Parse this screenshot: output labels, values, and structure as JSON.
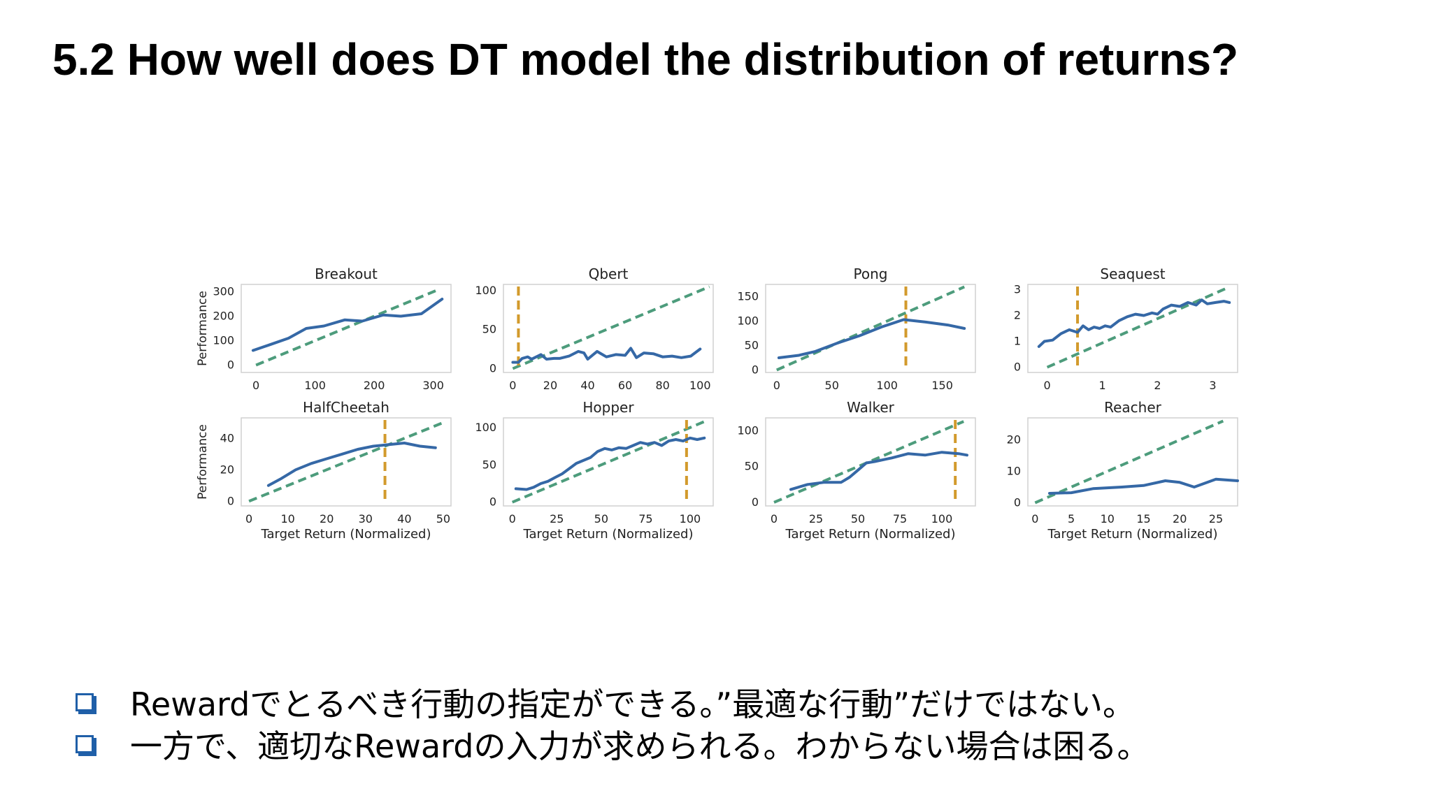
{
  "title": "5.2 How well does DT model the distribution of returns?",
  "bullets": [
    {
      "text": "Rewardでとるべき行動の指定ができる。”最適な行動”だけではない。"
    },
    {
      "text": "一方で、適切なRewardの入力が求められる。わからない場合は困る。"
    }
  ],
  "colors": {
    "performance": "#3568a6",
    "oracle": "#4d9c7c",
    "best": "#d29a2c",
    "spine": "#d0d0d0",
    "text": "#222222"
  },
  "chart_data": [
    {
      "type": "line",
      "title": "Breakout",
      "ylabel": "Performance",
      "xlabel": "",
      "xticks": [
        0,
        100,
        200,
        300
      ],
      "yticks": [
        0,
        100,
        200,
        300
      ],
      "xlim": [
        -25,
        330
      ],
      "ylim": [
        -30,
        330
      ],
      "series": [
        {
          "values": [
            [
              -5,
              60
            ],
            [
              25,
              85
            ],
            [
              55,
              110
            ],
            [
              85,
              150
            ],
            [
              115,
              160
            ],
            [
              150,
              185
            ],
            [
              180,
              180
            ],
            [
              215,
              205
            ],
            [
              245,
              200
            ],
            [
              280,
              210
            ],
            [
              315,
              270
            ]
          ]
        }
      ],
      "oracle": [
        [
          0,
          0
        ],
        [
          310,
          310
        ]
      ],
      "best_x": null
    },
    {
      "type": "line",
      "title": "Qbert",
      "ylabel": "",
      "xlabel": "",
      "xticks": [
        0,
        20,
        40,
        60,
        80,
        100
      ],
      "yticks": [
        0,
        50,
        100
      ],
      "xlim": [
        -5,
        107
      ],
      "ylim": [
        -5,
        108
      ],
      "series": [
        {
          "values": [
            [
              0,
              8
            ],
            [
              3,
              8
            ],
            [
              5,
              13
            ],
            [
              8,
              15
            ],
            [
              10,
              12
            ],
            [
              15,
              18
            ],
            [
              18,
              12
            ],
            [
              22,
              13
            ],
            [
              25,
              13
            ],
            [
              30,
              16
            ],
            [
              35,
              22
            ],
            [
              38,
              20
            ],
            [
              40,
              12
            ],
            [
              45,
              22
            ],
            [
              50,
              15
            ],
            [
              55,
              18
            ],
            [
              60,
              17
            ],
            [
              63,
              26
            ],
            [
              66,
              14
            ],
            [
              70,
              20
            ],
            [
              75,
              19
            ],
            [
              80,
              15
            ],
            [
              85,
              16
            ],
            [
              90,
              14
            ],
            [
              95,
              16
            ],
            [
              100,
              25
            ]
          ]
        }
      ],
      "oracle": [
        [
          0,
          0
        ],
        [
          105,
          105
        ]
      ],
      "best_x": 3
    },
    {
      "type": "line",
      "title": "Pong",
      "ylabel": "",
      "xlabel": "",
      "xticks": [
        0,
        50,
        100,
        150
      ],
      "yticks": [
        0,
        50,
        100,
        150
      ],
      "xlim": [
        -10,
        180
      ],
      "ylim": [
        -5,
        175
      ],
      "series": [
        {
          "values": [
            [
              2,
              25
            ],
            [
              20,
              30
            ],
            [
              35,
              38
            ],
            [
              55,
              55
            ],
            [
              75,
              70
            ],
            [
              95,
              88
            ],
            [
              115,
              103
            ],
            [
              135,
              98
            ],
            [
              155,
              92
            ],
            [
              170,
              85
            ]
          ]
        }
      ],
      "oracle": [
        [
          0,
          0
        ],
        [
          170,
          170
        ]
      ],
      "best_x": 117
    },
    {
      "type": "line",
      "title": "Seaquest",
      "ylabel": "",
      "xlabel": "",
      "xticks": [
        0,
        1,
        2,
        3
      ],
      "yticks": [
        0,
        1,
        2,
        3
      ],
      "xlim": [
        -0.35,
        3.45
      ],
      "ylim": [
        -0.2,
        3.2
      ],
      "series": [
        {
          "values": [
            [
              -0.15,
              0.8
            ],
            [
              -0.05,
              1.0
            ],
            [
              0.1,
              1.05
            ],
            [
              0.25,
              1.3
            ],
            [
              0.4,
              1.45
            ],
            [
              0.55,
              1.35
            ],
            [
              0.65,
              1.6
            ],
            [
              0.75,
              1.45
            ],
            [
              0.85,
              1.55
            ],
            [
              0.95,
              1.5
            ],
            [
              1.05,
              1.6
            ],
            [
              1.15,
              1.55
            ],
            [
              1.3,
              1.8
            ],
            [
              1.45,
              1.95
            ],
            [
              1.6,
              2.05
            ],
            [
              1.75,
              2.0
            ],
            [
              1.9,
              2.1
            ],
            [
              2.0,
              2.05
            ],
            [
              2.1,
              2.25
            ],
            [
              2.25,
              2.4
            ],
            [
              2.4,
              2.35
            ],
            [
              2.55,
              2.5
            ],
            [
              2.7,
              2.4
            ],
            [
              2.8,
              2.6
            ],
            [
              2.9,
              2.45
            ],
            [
              3.05,
              2.5
            ],
            [
              3.2,
              2.55
            ],
            [
              3.3,
              2.5
            ]
          ]
        }
      ],
      "oracle": [
        [
          0,
          0
        ],
        [
          3.3,
          3.1
        ]
      ],
      "best_x": 0.55
    },
    {
      "type": "line",
      "title": "HalfCheetah",
      "ylabel": "Performance",
      "xlabel": "Target Return (Normalized)",
      "xticks": [
        0,
        10,
        20,
        30,
        40,
        50
      ],
      "yticks": [
        0,
        20,
        40
      ],
      "xlim": [
        -2,
        52
      ],
      "ylim": [
        -3,
        53
      ],
      "series": [
        {
          "values": [
            [
              5,
              10
            ],
            [
              8,
              14
            ],
            [
              12,
              20
            ],
            [
              16,
              24
            ],
            [
              20,
              27
            ],
            [
              24,
              30
            ],
            [
              28,
              33
            ],
            [
              32,
              35
            ],
            [
              36,
              36
            ],
            [
              40,
              37
            ],
            [
              44,
              35
            ],
            [
              48,
              34
            ]
          ]
        }
      ],
      "oracle": [
        [
          0,
          0
        ],
        [
          50,
          50
        ]
      ],
      "best_x": 35
    },
    {
      "type": "line",
      "title": "Hopper",
      "ylabel": "",
      "xlabel": "Target Return (Normalized)",
      "xticks": [
        0,
        25,
        50,
        75,
        100
      ],
      "yticks": [
        0,
        50,
        100
      ],
      "xlim": [
        -5,
        113
      ],
      "ylim": [
        -5,
        113
      ],
      "series": [
        {
          "values": [
            [
              2,
              18
            ],
            [
              8,
              17
            ],
            [
              12,
              20
            ],
            [
              16,
              25
            ],
            [
              20,
              28
            ],
            [
              24,
              33
            ],
            [
              28,
              38
            ],
            [
              32,
              45
            ],
            [
              36,
              52
            ],
            [
              40,
              56
            ],
            [
              44,
              60
            ],
            [
              48,
              68
            ],
            [
              52,
              72
            ],
            [
              56,
              70
            ],
            [
              60,
              73
            ],
            [
              64,
              72
            ],
            [
              68,
              76
            ],
            [
              72,
              80
            ],
            [
              76,
              78
            ],
            [
              80,
              80
            ],
            [
              84,
              76
            ],
            [
              88,
              82
            ],
            [
              92,
              84
            ],
            [
              96,
              82
            ],
            [
              100,
              86
            ],
            [
              104,
              84
            ],
            [
              108,
              86
            ]
          ]
        }
      ],
      "oracle": [
        [
          0,
          0
        ],
        [
          110,
          110
        ]
      ],
      "best_x": 98
    },
    {
      "type": "line",
      "title": "Walker",
      "ylabel": "",
      "xlabel": "Target Return (Normalized)",
      "xticks": [
        0,
        25,
        50,
        75,
        100
      ],
      "yticks": [
        0,
        50,
        100
      ],
      "xlim": [
        -5,
        120
      ],
      "ylim": [
        -5,
        118
      ],
      "series": [
        {
          "values": [
            [
              10,
              18
            ],
            [
              20,
              25
            ],
            [
              30,
              28
            ],
            [
              40,
              28
            ],
            [
              45,
              35
            ],
            [
              50,
              45
            ],
            [
              55,
              55
            ],
            [
              60,
              57
            ],
            [
              70,
              62
            ],
            [
              80,
              68
            ],
            [
              90,
              66
            ],
            [
              100,
              70
            ],
            [
              110,
              68
            ],
            [
              115,
              66
            ]
          ]
        }
      ],
      "oracle": [
        [
          0,
          0
        ],
        [
          113,
          113
        ]
      ],
      "best_x": 108
    },
    {
      "type": "line",
      "title": "Reacher",
      "ylabel": "",
      "xlabel": "Target Return (Normalized)",
      "xticks": [
        0,
        5,
        10,
        15,
        20,
        25
      ],
      "yticks": [
        0,
        10,
        20
      ],
      "xlim": [
        -1,
        28
      ],
      "ylim": [
        -1,
        27
      ],
      "series": [
        {
          "values": [
            [
              2,
              3
            ],
            [
              5,
              3.2
            ],
            [
              8,
              4.5
            ],
            [
              12,
              5
            ],
            [
              15,
              5.5
            ],
            [
              18,
              7
            ],
            [
              20,
              6.5
            ],
            [
              22,
              5
            ],
            [
              25,
              7.5
            ],
            [
              28,
              7
            ]
          ]
        }
      ],
      "oracle": [
        [
          0,
          0
        ],
        [
          26,
          26
        ]
      ],
      "best_x": null
    }
  ]
}
